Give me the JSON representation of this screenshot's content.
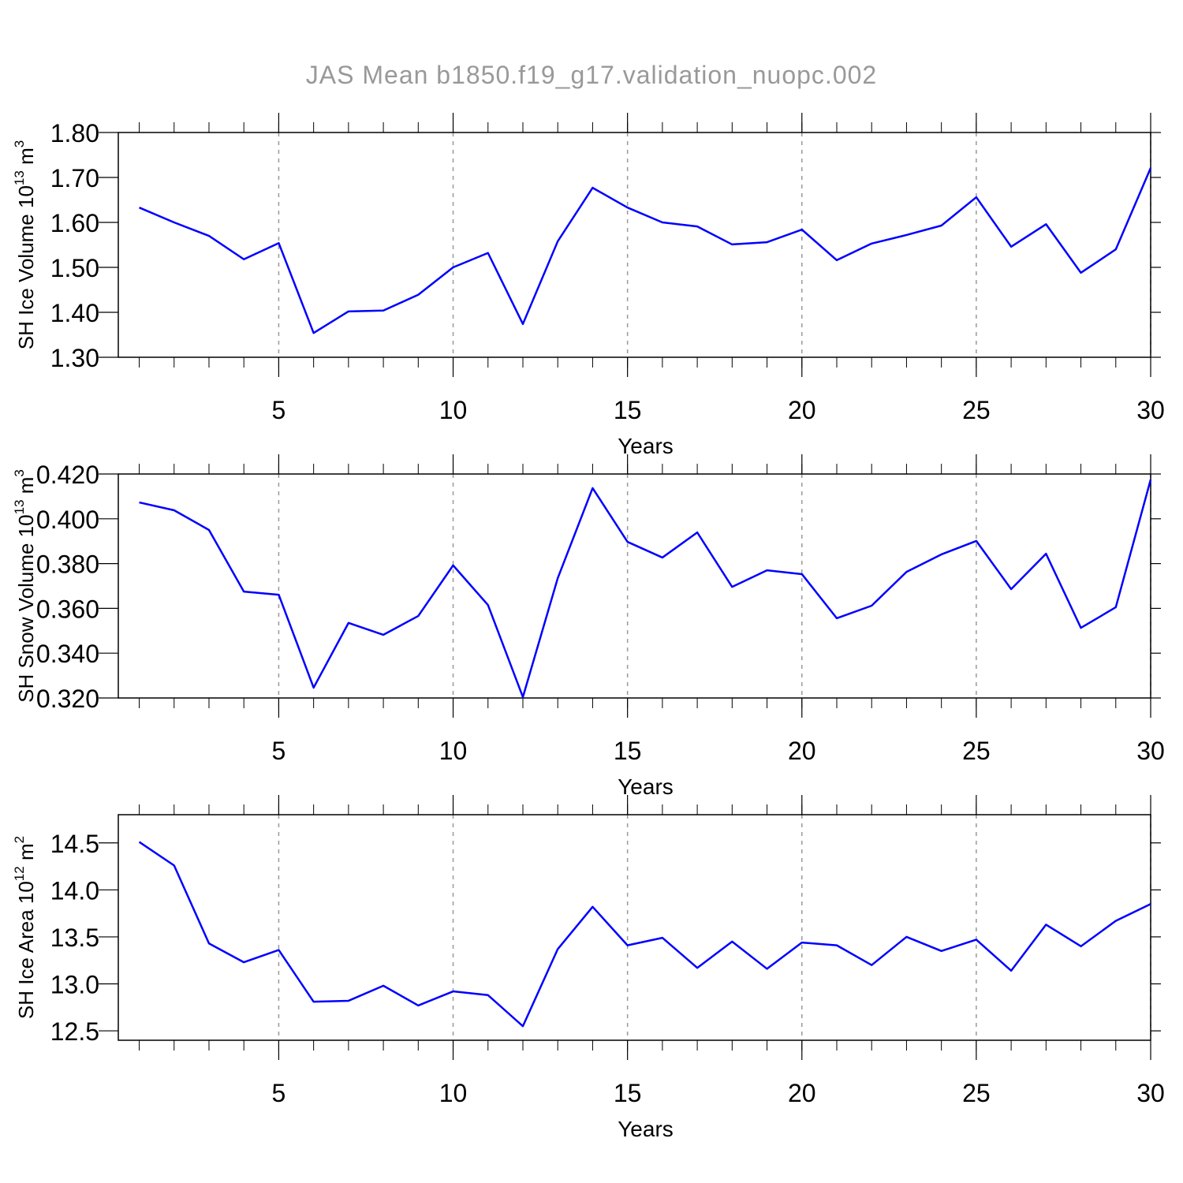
{
  "chart_data": [
    {
      "type": "line",
      "title": "JAS Mean b1850.f19_g17.validation_nuopc.002",
      "xlabel": "Years",
      "ylabel": [
        "SH Ice Volume 10",
        "13",
        " m",
        "3"
      ],
      "x": [
        1,
        2,
        3,
        4,
        5,
        6,
        7,
        8,
        9,
        10,
        11,
        12,
        13,
        14,
        15,
        16,
        17,
        18,
        19,
        20,
        21,
        22,
        23,
        24,
        25,
        26,
        27,
        28,
        29,
        30
      ],
      "series": [
        {
          "color": "#0000ff",
          "values": [
            1.633,
            1.6,
            1.57,
            1.518,
            1.554,
            1.354,
            1.402,
            1.404,
            1.439,
            1.5,
            1.532,
            1.374,
            1.558,
            1.677,
            1.633,
            1.6,
            1.591,
            1.551,
            1.556,
            1.584,
            1.516,
            1.553,
            1.572,
            1.593,
            1.656,
            1.546,
            1.596,
            1.488,
            1.54,
            1.721
          ]
        }
      ],
      "xlim": [
        0.4,
        30
      ],
      "xticks": [
        5,
        10,
        15,
        20,
        25,
        30
      ],
      "ylim": [
        1.3,
        1.8
      ],
      "yticks": [
        {
          "value": 1.3,
          "label": "1.30"
        },
        {
          "value": 1.4,
          "label": "1.40"
        },
        {
          "value": 1.5,
          "label": "1.50"
        },
        {
          "value": 1.6,
          "label": "1.60"
        },
        {
          "value": 1.7,
          "label": "1.70"
        },
        {
          "value": 1.8,
          "label": "1.80"
        }
      ],
      "grid": "x"
    },
    {
      "type": "line",
      "xlabel": "Years",
      "ylabel": [
        "SH Snow Volume 10",
        "13",
        " m",
        "3"
      ],
      "x": [
        1,
        2,
        3,
        4,
        5,
        6,
        7,
        8,
        9,
        10,
        11,
        12,
        13,
        14,
        15,
        16,
        17,
        18,
        19,
        20,
        21,
        22,
        23,
        24,
        25,
        26,
        27,
        28,
        29,
        30
      ],
      "series": [
        {
          "color": "#0000ff",
          "values": [
            0.4073,
            0.4038,
            0.395,
            0.3675,
            0.3661,
            0.3246,
            0.3535,
            0.3482,
            0.3566,
            0.3792,
            0.3615,
            0.3204,
            0.3735,
            0.4137,
            0.3897,
            0.3827,
            0.3939,
            0.3696,
            0.377,
            0.3753,
            0.3556,
            0.3612,
            0.3763,
            0.3841,
            0.3901,
            0.3686,
            0.3844,
            0.3513,
            0.3605,
            0.4175
          ]
        }
      ],
      "xlim": [
        0.4,
        30
      ],
      "xticks": [
        5,
        10,
        15,
        20,
        25,
        30
      ],
      "ylim": [
        0.32,
        0.42
      ],
      "yticks": [
        {
          "value": 0.32,
          "label": "0.320"
        },
        {
          "value": 0.34,
          "label": "0.340"
        },
        {
          "value": 0.36,
          "label": "0.360"
        },
        {
          "value": 0.38,
          "label": "0.380"
        },
        {
          "value": 0.4,
          "label": "0.400"
        },
        {
          "value": 0.42,
          "label": "0.420"
        }
      ],
      "grid": "x"
    },
    {
      "type": "line",
      "xlabel": "Years",
      "ylabel": [
        "SH Ice Area 10",
        "12",
        " m",
        "2"
      ],
      "x": [
        1,
        2,
        3,
        4,
        5,
        6,
        7,
        8,
        9,
        10,
        11,
        12,
        13,
        14,
        15,
        16,
        17,
        18,
        19,
        20,
        21,
        22,
        23,
        24,
        25,
        26,
        27,
        28,
        29,
        30
      ],
      "series": [
        {
          "color": "#0000ff",
          "values": [
            14.51,
            14.26,
            13.43,
            13.23,
            13.36,
            12.81,
            12.82,
            12.98,
            12.77,
            12.92,
            12.88,
            12.55,
            13.37,
            13.82,
            13.41,
            13.49,
            13.17,
            13.45,
            13.16,
            13.44,
            13.41,
            13.2,
            13.5,
            13.35,
            13.47,
            13.14,
            13.63,
            13.4,
            13.67,
            13.85
          ]
        }
      ],
      "xlim": [
        0.4,
        30
      ],
      "xticks": [
        5,
        10,
        15,
        20,
        25,
        30
      ],
      "ylim": [
        12.4,
        14.8
      ],
      "yticks": [
        12.5,
        {
          "value": 13,
          "label": "13.0"
        },
        13.5,
        {
          "value": 14,
          "label": "14.0"
        },
        14.5
      ],
      "grid": "x"
    }
  ]
}
